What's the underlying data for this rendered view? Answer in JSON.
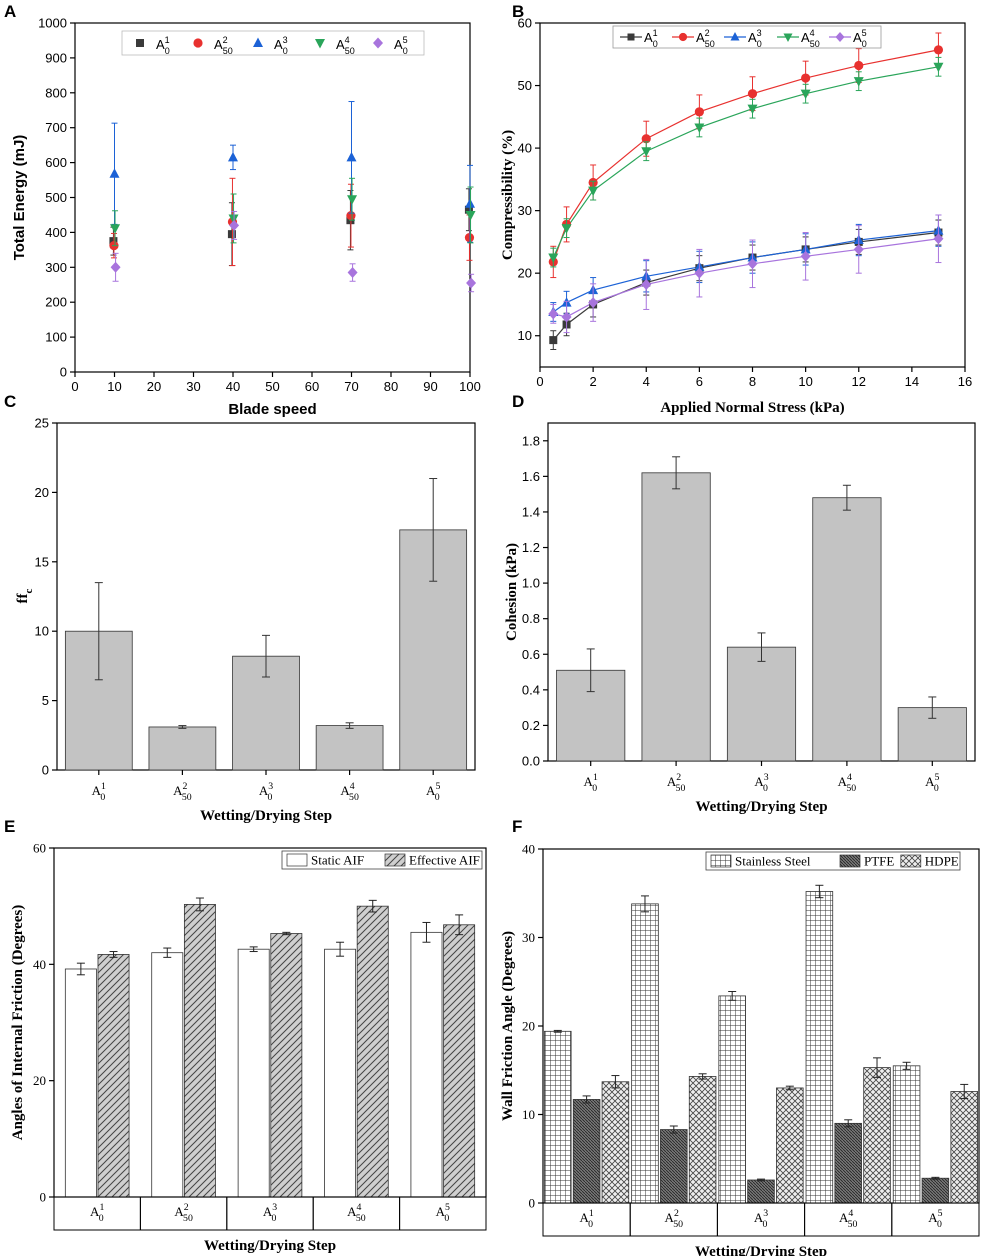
{
  "chart_data": [
    {
      "panel": "A",
      "type": "scatter",
      "xlabel": "Blade speed",
      "ylabel": "Total Energy (mJ)",
      "xlim": [
        0,
        100
      ],
      "ylim": [
        0,
        1000
      ],
      "xticks": [
        0,
        10,
        20,
        30,
        40,
        50,
        60,
        70,
        80,
        90,
        100
      ],
      "yticks": [
        0,
        100,
        200,
        300,
        400,
        500,
        600,
        700,
        800,
        900,
        1000
      ],
      "legend_position": "top",
      "x": [
        10,
        40,
        70,
        100
      ],
      "series": [
        {
          "name": "A01",
          "base": "A",
          "sub": "0",
          "sup": "1",
          "marker": "square",
          "color": "#3a3a3a",
          "values": [
            375,
            395,
            435,
            465
          ],
          "errors": [
            40,
            90,
            85,
            60
          ]
        },
        {
          "name": "A502",
          "base": "A",
          "sub": "50",
          "sup": "2",
          "marker": "circle",
          "color": "#e8312f",
          "values": [
            362,
            430,
            448,
            385
          ],
          "errors": [
            35,
            125,
            90,
            65
          ]
        },
        {
          "name": "A03",
          "base": "A",
          "sub": "0",
          "sup": "3",
          "marker": "triangle-up",
          "color": "#1c62d6",
          "values": [
            568,
            615,
            615,
            482
          ],
          "errors": [
            145,
            35,
            160,
            110
          ]
        },
        {
          "name": "A504",
          "base": "A",
          "sub": "50",
          "sup": "4",
          "marker": "triangle-down",
          "color": "#2aa55a",
          "values": [
            412,
            440,
            495,
            450
          ],
          "errors": [
            50,
            70,
            60,
            80
          ]
        },
        {
          "name": "A05",
          "base": "A",
          "sub": "0",
          "sup": "5",
          "marker": "diamond",
          "color": "#a874dd",
          "values": [
            300,
            420,
            285,
            255
          ],
          "errors": [
            40,
            40,
            25,
            25
          ]
        }
      ]
    },
    {
      "panel": "B",
      "type": "line",
      "xlabel": "Applied Normal Stress (kPa)",
      "ylabel": "Compressibility (%)",
      "xlim": [
        0,
        16
      ],
      "ylim": [
        5,
        60
      ],
      "xticks": [
        0,
        2,
        4,
        6,
        8,
        10,
        12,
        14,
        16
      ],
      "yticks": [
        10,
        20,
        30,
        40,
        50,
        60
      ],
      "legend_position": "top",
      "x": [
        0.5,
        1,
        2,
        4,
        6,
        8,
        10,
        12,
        15
      ],
      "series": [
        {
          "name": "A01",
          "base": "A",
          "sub": "0",
          "sup": "1",
          "marker": "square",
          "color": "#3a3a3a",
          "values": [
            9.3,
            11.8,
            15.0,
            18.5,
            20.8,
            22.5,
            23.8,
            25.0,
            26.5
          ],
          "errors": [
            1.5,
            1.8,
            2.0,
            2.0,
            2.0,
            2.0,
            2.0,
            2.0,
            2.0
          ]
        },
        {
          "name": "A502",
          "base": "A",
          "sub": "50",
          "sup": "2",
          "marker": "circle",
          "color": "#e8312f",
          "values": [
            21.8,
            27.8,
            34.5,
            41.5,
            45.8,
            48.7,
            51.2,
            53.2,
            55.7
          ],
          "errors": [
            2.5,
            2.8,
            2.8,
            2.8,
            2.7,
            2.7,
            2.7,
            2.7,
            2.7
          ]
        },
        {
          "name": "A03",
          "base": "A",
          "sub": "0",
          "sup": "3",
          "marker": "triangle-up",
          "color": "#1c62d6",
          "values": [
            13.8,
            15.3,
            17.3,
            19.5,
            21.0,
            22.5,
            23.8,
            25.3,
            26.8
          ],
          "errors": [
            1.5,
            1.8,
            2.0,
            2.5,
            2.5,
            2.5,
            2.5,
            2.5,
            2.5
          ]
        },
        {
          "name": "A504",
          "base": "A",
          "sub": "50",
          "sup": "4",
          "marker": "triangle-down",
          "color": "#2aa55a",
          "values": [
            22.5,
            27.2,
            33.2,
            39.5,
            43.3,
            46.3,
            48.7,
            50.7,
            53.0
          ],
          "errors": [
            1.5,
            1.5,
            1.5,
            1.5,
            1.5,
            1.5,
            1.5,
            1.5,
            1.5
          ]
        },
        {
          "name": "A05",
          "base": "A",
          "sub": "0",
          "sup": "5",
          "marker": "diamond",
          "color": "#a874dd",
          "values": [
            13.5,
            13.0,
            15.3,
            18.2,
            20.0,
            21.5,
            22.7,
            23.8,
            25.5
          ],
          "errors": [
            1.5,
            2.5,
            3.0,
            4.0,
            3.8,
            3.8,
            3.8,
            3.8,
            3.8
          ]
        }
      ]
    },
    {
      "panel": "C",
      "type": "bar",
      "xlabel": "Wetting/Drying Step",
      "ylabel": "ff",
      "ylabel_sub": "c",
      "ylim": [
        0,
        25
      ],
      "yticks": [
        0,
        5,
        10,
        15,
        20,
        25
      ],
      "categories": [
        {
          "base": "A",
          "sub": "0",
          "sup": "1"
        },
        {
          "base": "A",
          "sub": "50",
          "sup": "2"
        },
        {
          "base": "A",
          "sub": "0",
          "sup": "3"
        },
        {
          "base": "A",
          "sub": "50",
          "sup": "4"
        },
        {
          "base": "A",
          "sub": "0",
          "sup": "5"
        }
      ],
      "values": [
        10.0,
        3.1,
        8.2,
        3.2,
        17.3
      ],
      "errors": [
        3.5,
        0.1,
        1.5,
        0.2,
        3.7
      ]
    },
    {
      "panel": "D",
      "type": "bar",
      "xlabel": "Wetting/Drying Step",
      "ylabel": "Cohesion (kPa)",
      "ylim": [
        0,
        1.9
      ],
      "yticks": [
        "0.0",
        "0.2",
        "0.4",
        "0.6",
        "0.8",
        "1.0",
        "1.2",
        "1.4",
        "1.6",
        "1.8"
      ],
      "categories": [
        {
          "base": "A",
          "sub": "0",
          "sup": "1"
        },
        {
          "base": "A",
          "sub": "50",
          "sup": "2"
        },
        {
          "base": "A",
          "sub": "0",
          "sup": "3"
        },
        {
          "base": "A",
          "sub": "50",
          "sup": "4"
        },
        {
          "base": "A",
          "sub": "0",
          "sup": "5"
        }
      ],
      "values": [
        0.51,
        1.62,
        0.64,
        1.48,
        0.3
      ],
      "errors": [
        0.12,
        0.09,
        0.08,
        0.07,
        0.06
      ]
    },
    {
      "panel": "E",
      "type": "bar",
      "xlabel": "Wetting/Drying Step",
      "ylabel": "Angles of Internal Friction (Degrees)",
      "ylim": [
        0,
        60
      ],
      "yticks": [
        0,
        20,
        40,
        60
      ],
      "legend_position": "top-right",
      "categories": [
        {
          "base": "A",
          "sub": "0",
          "sup": "1"
        },
        {
          "base": "A",
          "sub": "50",
          "sup": "2"
        },
        {
          "base": "A",
          "sub": "0",
          "sup": "3"
        },
        {
          "base": "A",
          "sub": "50",
          "sup": "4"
        },
        {
          "base": "A",
          "sub": "0",
          "sup": "5"
        }
      ],
      "series": [
        {
          "name": "Static AIF",
          "pattern": "solid",
          "values": [
            39.2,
            42.0,
            42.6,
            42.6,
            45.5
          ],
          "errors": [
            1.0,
            0.8,
            0.4,
            1.2,
            1.7
          ]
        },
        {
          "name": "Effective AIF",
          "pattern": "diagonal",
          "values": [
            41.7,
            50.3,
            45.3,
            50.0,
            46.8
          ],
          "errors": [
            0.5,
            1.1,
            0.2,
            1.0,
            1.7
          ]
        }
      ]
    },
    {
      "panel": "F",
      "type": "bar",
      "xlabel": "Wetting/Drying Step",
      "ylabel": "Wall Friction Angle (Degrees)",
      "ylim": [
        0,
        40
      ],
      "yticks": [
        0,
        10,
        20,
        30,
        40
      ],
      "legend_position": "top-right",
      "categories": [
        {
          "base": "A",
          "sub": "0",
          "sup": "1"
        },
        {
          "base": "A",
          "sub": "50",
          "sup": "2"
        },
        {
          "base": "A",
          "sub": "0",
          "sup": "3"
        },
        {
          "base": "A",
          "sub": "50",
          "sup": "4"
        },
        {
          "base": "A",
          "sub": "0",
          "sup": "5"
        }
      ],
      "series": [
        {
          "name": "Stainless Steel",
          "pattern": "grid",
          "values": [
            19.4,
            33.8,
            23.4,
            35.2,
            15.5
          ],
          "errors": [
            0.1,
            0.9,
            0.5,
            0.7,
            0.4
          ]
        },
        {
          "name": "PTFE",
          "pattern": "dense",
          "values": [
            11.7,
            8.3,
            2.6,
            9.0,
            2.8
          ],
          "errors": [
            0.4,
            0.4,
            0.1,
            0.4,
            0.1
          ]
        },
        {
          "name": "HDPE",
          "pattern": "cross",
          "values": [
            13.7,
            14.3,
            13.0,
            15.3,
            12.6
          ],
          "errors": [
            0.7,
            0.3,
            0.2,
            1.1,
            0.8
          ]
        }
      ]
    }
  ]
}
